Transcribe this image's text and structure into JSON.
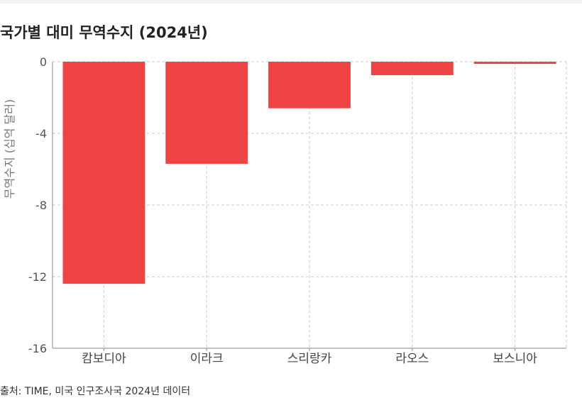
{
  "chart_data": {
    "type": "bar",
    "title": "국가별 대미 무역수지 (2024년)",
    "xlabel": "",
    "ylabel": "무역수지 (십억 달러)",
    "categories": [
      "캄보디아",
      "이라크",
      "스리랑카",
      "라오스",
      "보스니아"
    ],
    "values": [
      -12.4,
      -5.7,
      -2.6,
      -0.75,
      -0.12
    ],
    "ylim": [
      -16,
      0
    ],
    "yticks": [
      0,
      -4,
      -8,
      -12,
      -16
    ],
    "ytick_labels": [
      "0",
      "-4",
      "-8",
      "-12",
      "-16"
    ],
    "grid": true,
    "bar_color": "#ef4444",
    "source": "출처: TIME, 미국 인구조사국 2024년 데이터"
  }
}
